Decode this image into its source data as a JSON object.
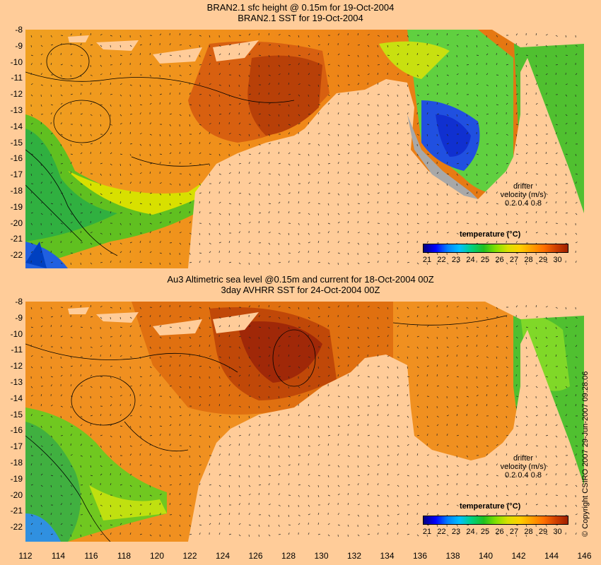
{
  "top_panel": {
    "title_line1": "BRAN2.1 sfc height @ 0.15m for 19-Oct-2004",
    "title_line2": "BRAN2.1 SST for 19-Oct-2004"
  },
  "bottom_panel": {
    "title_line1": "Au3 Altimetric sea level  @0.15m and current for 18-Oct-2004 00Z",
    "title_line2": "3day AVHRR SST for 24-Oct-2004 00Z"
  },
  "latitude_labels": [
    "-8",
    "-9",
    "-10",
    "-11",
    "-12",
    "-13",
    "-14",
    "-15",
    "-16",
    "-17",
    "-18",
    "-19",
    "-20",
    "-21",
    "-22"
  ],
  "longitude_labels": [
    "112",
    "114",
    "116",
    "118",
    "120",
    "122",
    "124",
    "126",
    "128",
    "130",
    "132",
    "134",
    "136",
    "138",
    "140",
    "142",
    "144",
    "146"
  ],
  "legend": {
    "title": "temperature (°C)",
    "ticks": [
      "21",
      "22",
      "23",
      "24",
      "25",
      "26",
      "27",
      "28",
      "29",
      "30"
    ],
    "colors": [
      "#00007f",
      "#0000ff",
      "#0080ff",
      "#00c0ff",
      "#00d080",
      "#20c020",
      "#80e000",
      "#d8e000",
      "#ffd000",
      "#ffa000",
      "#ff7000",
      "#d04000",
      "#a02000"
    ]
  },
  "drifter": {
    "line1": "drifter",
    "line2": "velocity (m/s)",
    "line3": "0.2  0.4  0.8"
  },
  "copyright": "© Copyright CSIRO 2007   29-Jun-2007 09:28:06",
  "colors": {
    "land": "#ffcc99",
    "background": "#ffcc99"
  }
}
